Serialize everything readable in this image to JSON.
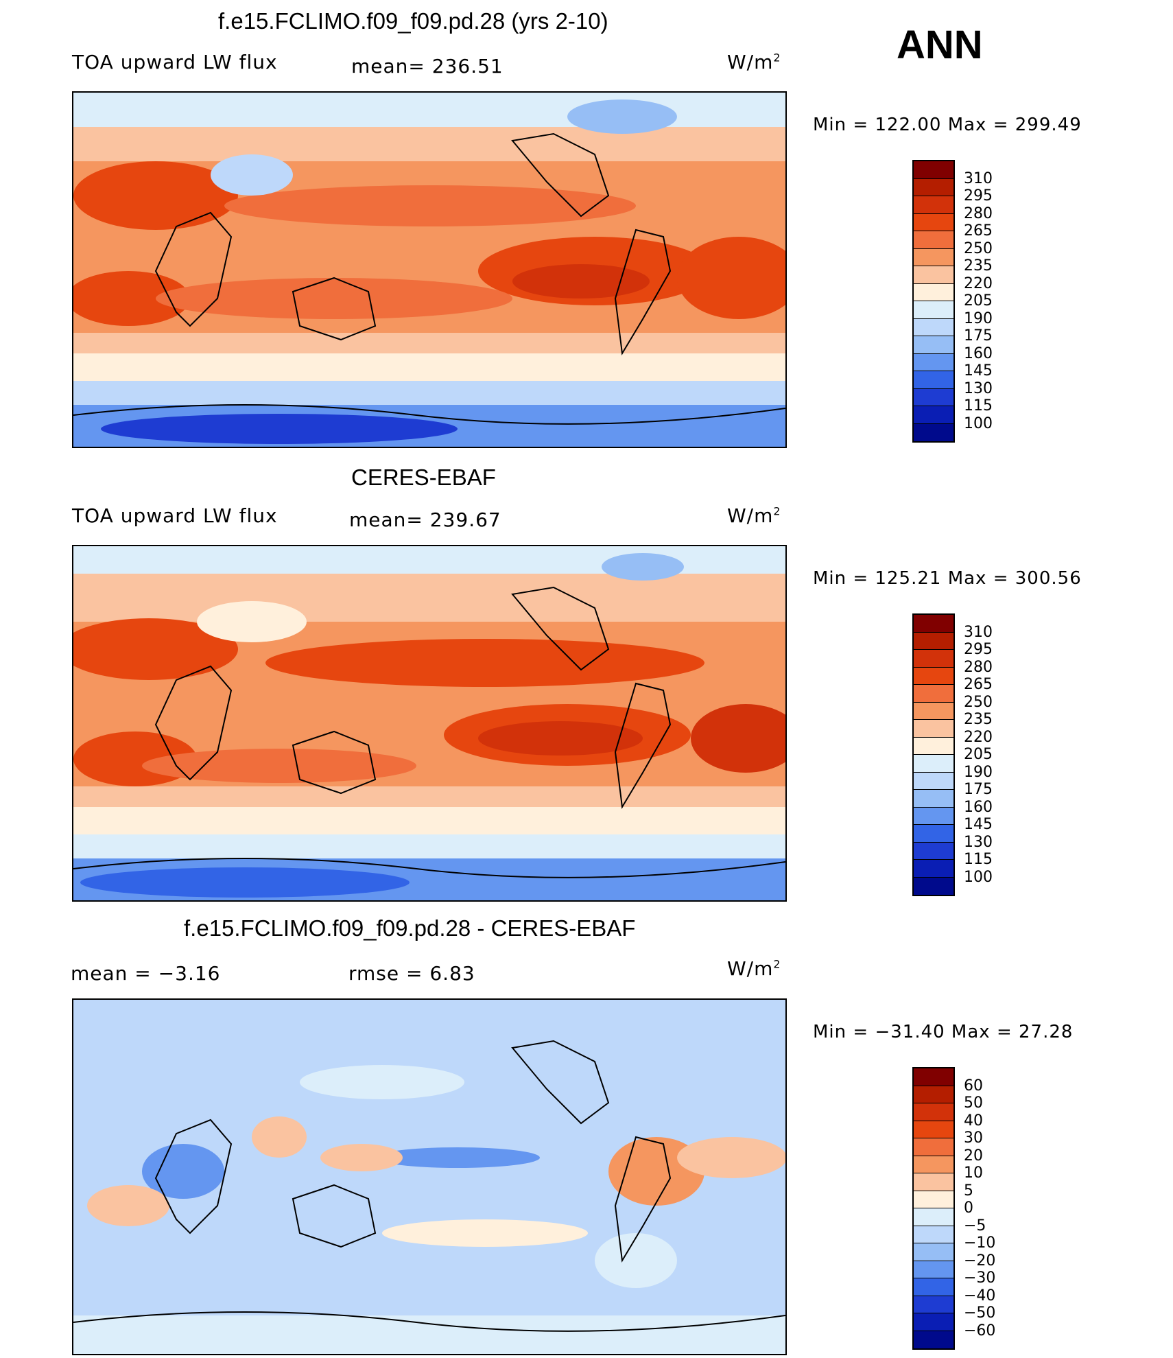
{
  "season": "ANN",
  "units": "W/m",
  "units_sup": "2",
  "panels": [
    {
      "title": "f.e15.FCLIMO.f09_f09.pd.28 (yrs 2-10)",
      "left_label": "TOA upward LW flux",
      "stat": "mean=  236.51",
      "minmax": "Min  =  122.00  Max  =  299.49"
    },
    {
      "title": "CERES-EBAF",
      "left_label": "TOA upward LW flux",
      "stat": "mean=  239.67",
      "minmax": "Min  =  125.21  Max  =  300.56"
    },
    {
      "title": "f.e15.FCLIMO.f09_f09.pd.28 - CERES-EBAF",
      "left_label": "mean  =     −3.16",
      "stat": "rmse  =      6.83",
      "minmax": "Min  =  −31.40  Max  =    27.28"
    }
  ],
  "colorbars": {
    "flux_colors": [
      "#800000",
      "#b41e00",
      "#d2320a",
      "#e6460f",
      "#f06e3c",
      "#f5965f",
      "#fac3a0",
      "#fff0dc",
      "#dceefa",
      "#bed8fa",
      "#96bef5",
      "#6496f0",
      "#3264e6",
      "#1e3cd2",
      "#0a1eb4",
      "#000a8c"
    ],
    "flux_ticks": [
      "310",
      "295",
      "280",
      "265",
      "250",
      "235",
      "220",
      "205",
      "190",
      "175",
      "160",
      "145",
      "130",
      "115",
      "100"
    ],
    "diff_colors": [
      "#800000",
      "#b41e00",
      "#d2320a",
      "#e6460f",
      "#f06e3c",
      "#f5965f",
      "#fac3a0",
      "#fff0dc",
      "#dceefa",
      "#bed8fa",
      "#96bef5",
      "#6496f0",
      "#3264e6",
      "#1e3cd2",
      "#0a1eb4",
      "#000a8c"
    ],
    "diff_ticks": [
      "60",
      "50",
      "40",
      "30",
      "20",
      "10",
      "5",
      "0",
      "−5",
      "−10",
      "−20",
      "−30",
      "−40",
      "−50",
      "−60"
    ]
  },
  "chart_data": [
    {
      "type": "heatmap",
      "title": "f.e15.FCLIMO.f09_f09.pd.28 (yrs 2-10)",
      "variable": "TOA upward LW flux",
      "units": "W/m2",
      "mean": 236.51,
      "min": 122.0,
      "max": 299.49,
      "contour_levels": [
        100,
        115,
        130,
        145,
        160,
        175,
        190,
        205,
        220,
        235,
        250,
        265,
        280,
        295,
        310
      ]
    },
    {
      "type": "heatmap",
      "title": "CERES-EBAF",
      "variable": "TOA upward LW flux",
      "units": "W/m2",
      "mean": 239.67,
      "min": 125.21,
      "max": 300.56,
      "contour_levels": [
        100,
        115,
        130,
        145,
        160,
        175,
        190,
        205,
        220,
        235,
        250,
        265,
        280,
        295,
        310
      ]
    },
    {
      "type": "heatmap",
      "title": "f.e15.FCLIMO.f09_f09.pd.28 - CERES-EBAF",
      "units": "W/m2",
      "mean": -3.16,
      "rmse": 6.83,
      "min": -31.4,
      "max": 27.28,
      "contour_levels": [
        -60,
        -50,
        -40,
        -30,
        -20,
        -10,
        -5,
        0,
        5,
        10,
        20,
        30,
        40,
        50,
        60
      ]
    }
  ]
}
